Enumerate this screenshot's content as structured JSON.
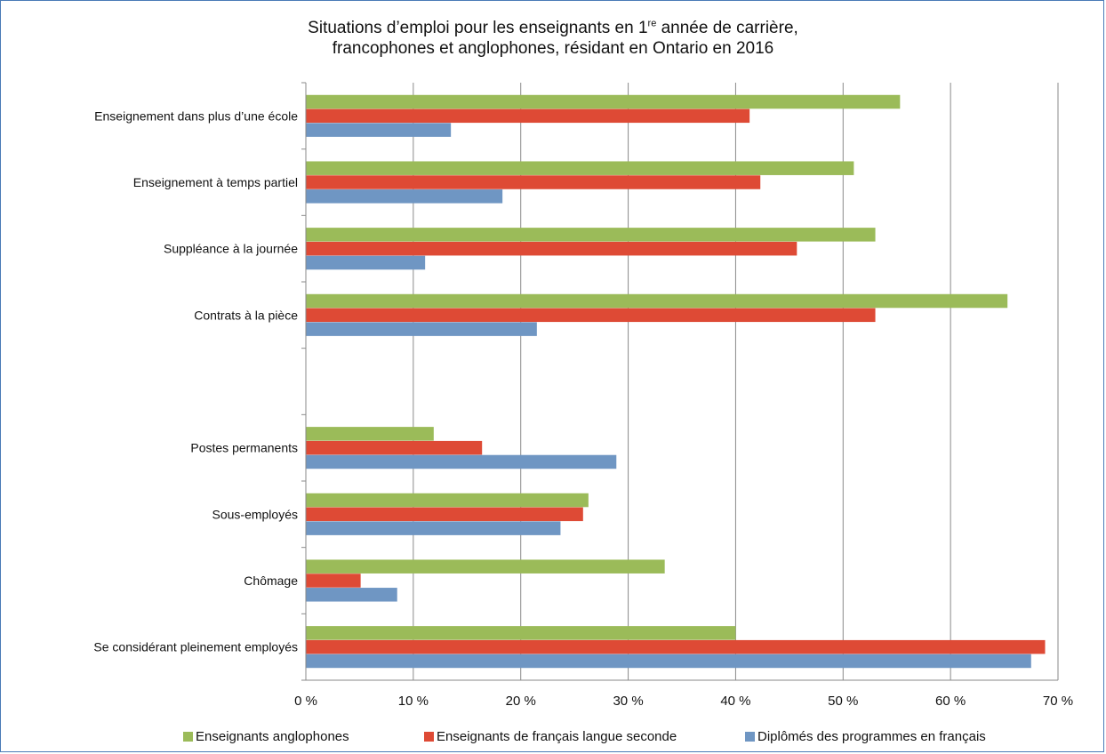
{
  "chart_data": {
    "type": "bar",
    "orientation": "horizontal",
    "title_line1_pre": "Situations d’emploi pour les enseignants en 1",
    "title_line1_sup": "re",
    "title_line1_post": " année de carrière,",
    "title_line2": "francophones et anglophones, résidant en Ontario en 2016",
    "categories": [
      "Enseignement dans plus d’une école",
      "Enseignement à temps partiel",
      "Suppléance à la journée",
      "Contrats à la pièce",
      "",
      "Postes permanents",
      "Sous-employés",
      "Chômage",
      "Se considérant pleinement employés"
    ],
    "series": [
      {
        "name": "Enseignants anglophones",
        "color": "#9bbb59",
        "values": [
          55.3,
          51.0,
          53.0,
          65.3,
          null,
          11.9,
          26.3,
          33.4,
          40.0
        ]
      },
      {
        "name": "Enseignants de français langue seconde",
        "color": "#de4a35",
        "values": [
          41.3,
          42.3,
          45.7,
          53.0,
          null,
          16.4,
          25.8,
          5.1,
          68.8
        ]
      },
      {
        "name": "Diplômés des programmes en français",
        "color": "#6f96c3",
        "values": [
          13.5,
          18.3,
          11.1,
          21.5,
          null,
          28.9,
          23.7,
          8.5,
          67.5
        ]
      }
    ],
    "xlim": [
      0,
      70
    ],
    "xticks": [
      0,
      10,
      20,
      30,
      40,
      50,
      60,
      70
    ],
    "xtick_labels": [
      "0 %",
      "10 %",
      "20 %",
      "30 %",
      "40 %",
      "50 %",
      "60 %",
      "70 %"
    ],
    "grid": true,
    "legend_position": "bottom"
  }
}
